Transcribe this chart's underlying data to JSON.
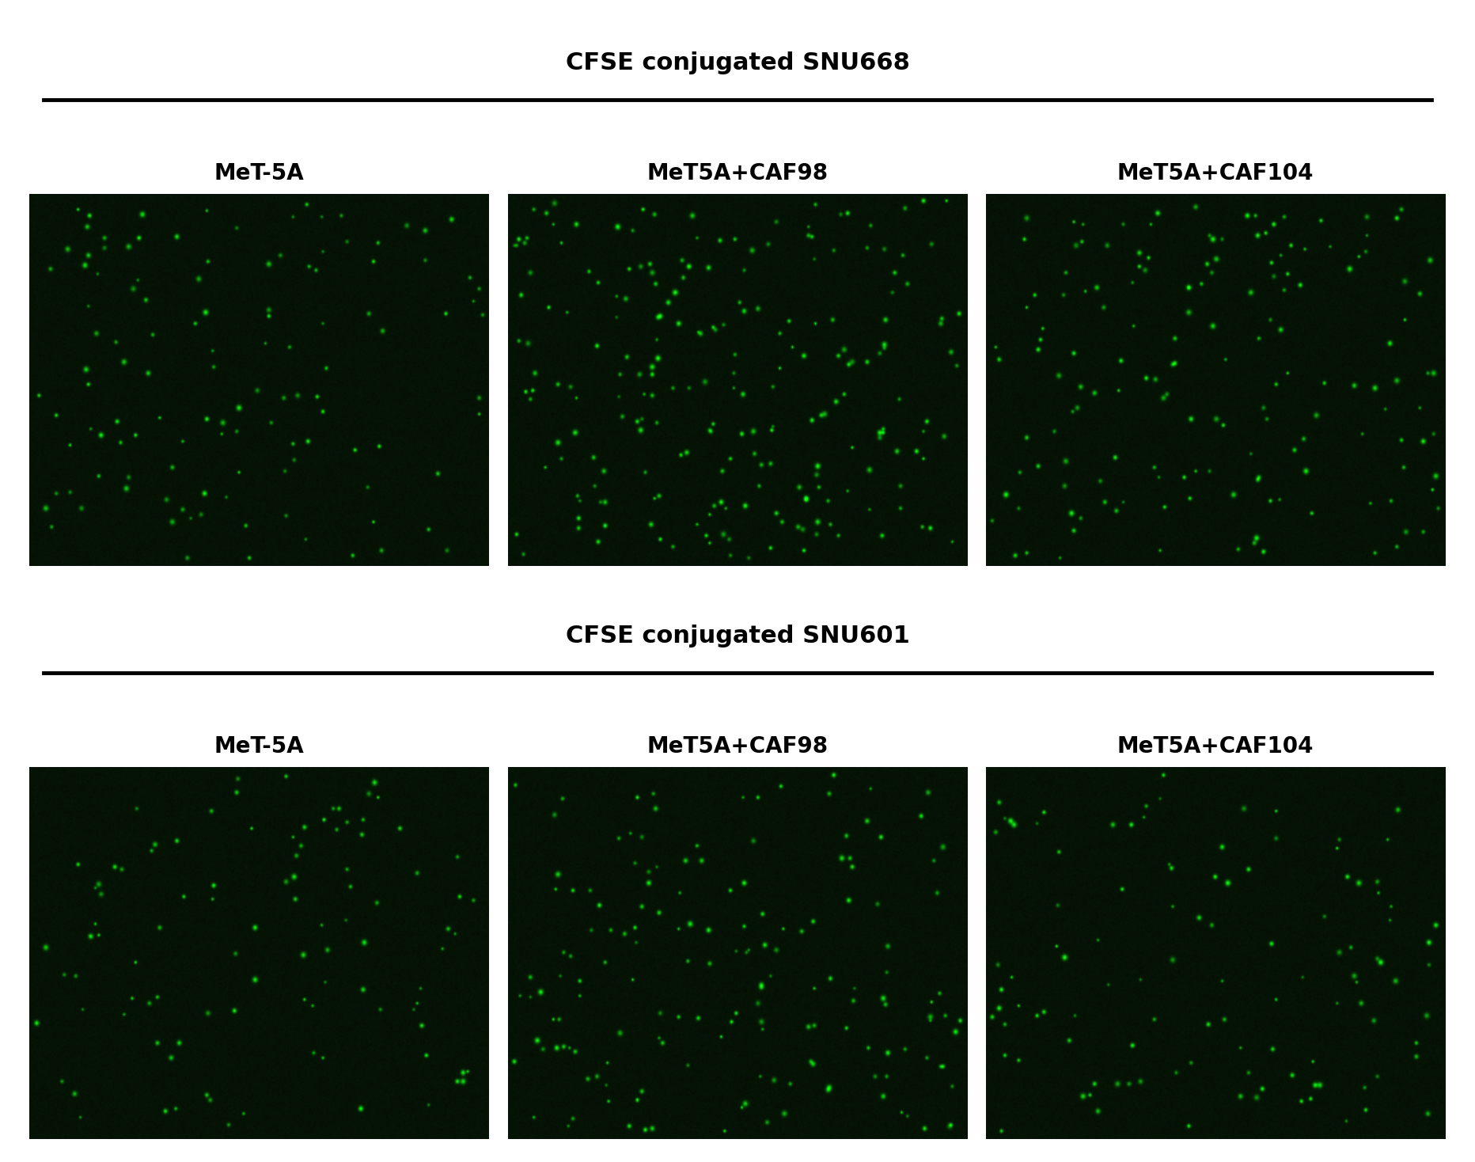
{
  "title1": "CFSE conjugated SNU668",
  "title2": "CFSE conjugated SNU601",
  "col_labels": [
    "MeT-5A",
    "MeT5A+CAF98",
    "MeT5A+CAF104"
  ],
  "bg_color": "#0a1a0a",
  "dot_color_base": [
    0,
    220,
    0
  ],
  "title_fontsize": 22,
  "col_label_fontsize": 20,
  "fig_bg_color": "#ffffff",
  "row1_dot_counts": [
    120,
    220,
    160
  ],
  "row2_dot_counts": [
    100,
    160,
    110
  ],
  "seed": 42
}
